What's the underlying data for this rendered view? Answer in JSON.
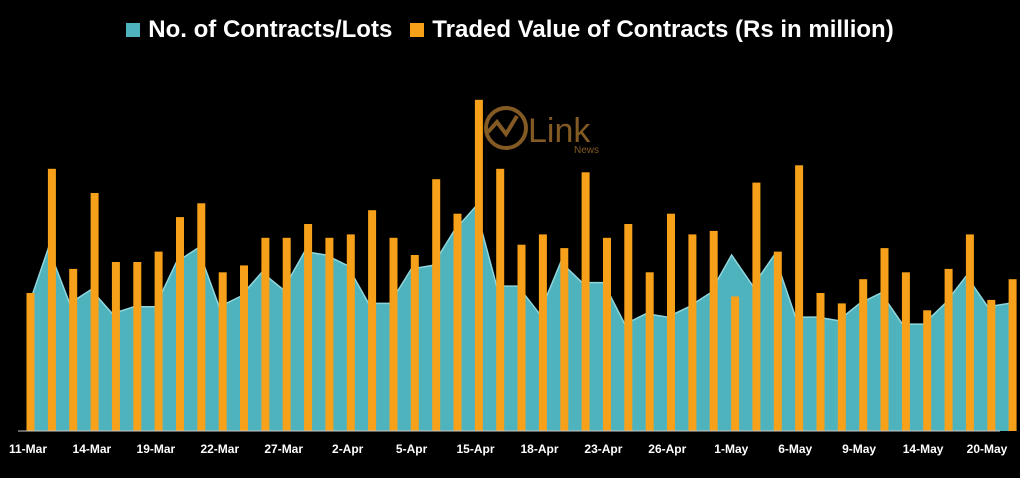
{
  "legend": {
    "contracts_label": "No. of Contracts/Lots",
    "value_label": "Traded Value of Contracts (Rs in million)"
  },
  "watermark": {
    "brand": "Link",
    "sub": "News"
  },
  "colors": {
    "background": "#000000",
    "area_fill": "#4fb3be",
    "area_line": "#8fd6dd",
    "bar": "#f7a11a",
    "axis": "#c8c8c8",
    "watermark": "#9a6a2a"
  },
  "chart_data": {
    "type": "bar",
    "title": "",
    "xlabel": "",
    "ylabel": "",
    "ylim": [
      0,
      100
    ],
    "y_axis_visible": false,
    "grid": false,
    "legend_position": "top",
    "x_tick_labels": [
      "11-Mar",
      "14-Mar",
      "19-Mar",
      "22-Mar",
      "27-Mar",
      "2-Apr",
      "5-Apr",
      "15-Apr",
      "18-Apr",
      "23-Apr",
      "26-Apr",
      "1-May",
      "6-May",
      "9-May",
      "14-May",
      "20-May"
    ],
    "series": [
      {
        "name": "No. of Contracts/Lots",
        "type": "area",
        "values": [
          35,
          53,
          37,
          41,
          34,
          36,
          36,
          49,
          53,
          36,
          39,
          46,
          41,
          52,
          51,
          48,
          37,
          37,
          47,
          48,
          58,
          65,
          42,
          42,
          34,
          49,
          43,
          43,
          31,
          34,
          33,
          36,
          40,
          51,
          42,
          51,
          33,
          33,
          32,
          37,
          40,
          31,
          31,
          37,
          45,
          36,
          37
        ]
      },
      {
        "name": "Traded Value of Contracts (Rs in million)",
        "type": "bar",
        "values": [
          40,
          76,
          47,
          69,
          49,
          49,
          52,
          62,
          66,
          46,
          48,
          56,
          56,
          60,
          56,
          57,
          64,
          56,
          51,
          73,
          63,
          96,
          76,
          54,
          57,
          53,
          75,
          56,
          60,
          46,
          63,
          57,
          58,
          39,
          72,
          52,
          77,
          40,
          37,
          44,
          53,
          46,
          35,
          47,
          57,
          38,
          44
        ]
      }
    ]
  }
}
